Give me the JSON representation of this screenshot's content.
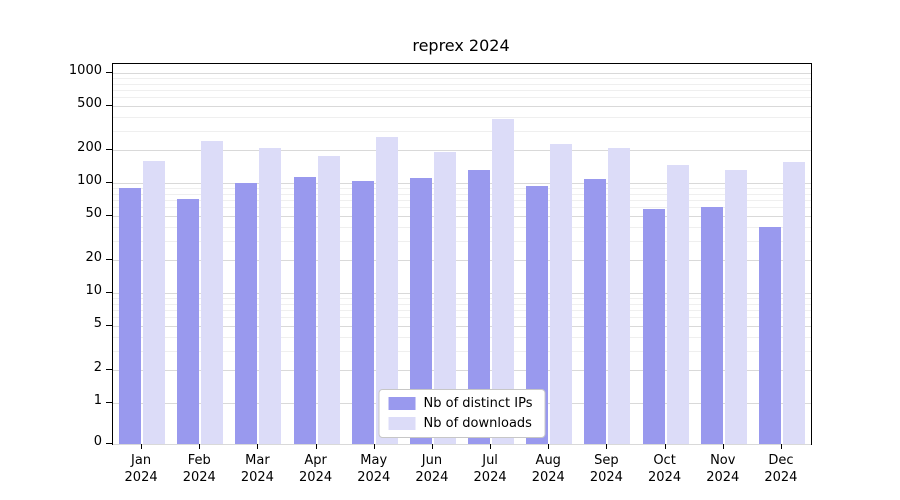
{
  "title": "reprex 2024",
  "chart_data": {
    "type": "bar",
    "title": "reprex 2024",
    "yscale": "log (linear segment between 0 and 1)",
    "grid": true,
    "legend_position": "inside bottom center",
    "ylim": [
      0,
      1200
    ],
    "yticks": [
      0,
      1,
      2,
      5,
      10,
      20,
      50,
      100,
      200,
      500,
      1000
    ],
    "categories": [
      "Jan 2024",
      "Feb 2024",
      "Mar 2024",
      "Apr 2024",
      "May 2024",
      "Jun 2024",
      "Jul 2024",
      "Aug 2024",
      "Sep 2024",
      "Oct 2024",
      "Nov 2024",
      "Dec 2024"
    ],
    "series": [
      {
        "name": "Nb of distinct IPs",
        "color": "#9999ee",
        "values": [
          90,
          72,
          100,
          113,
          104,
          110,
          130,
          93,
          108,
          58,
          60,
          40
        ]
      },
      {
        "name": "Nb of downloads",
        "color": "#dcdcf8",
        "values": [
          160,
          240,
          210,
          175,
          260,
          190,
          380,
          225,
          210,
          145,
          130,
          155
        ]
      }
    ]
  }
}
